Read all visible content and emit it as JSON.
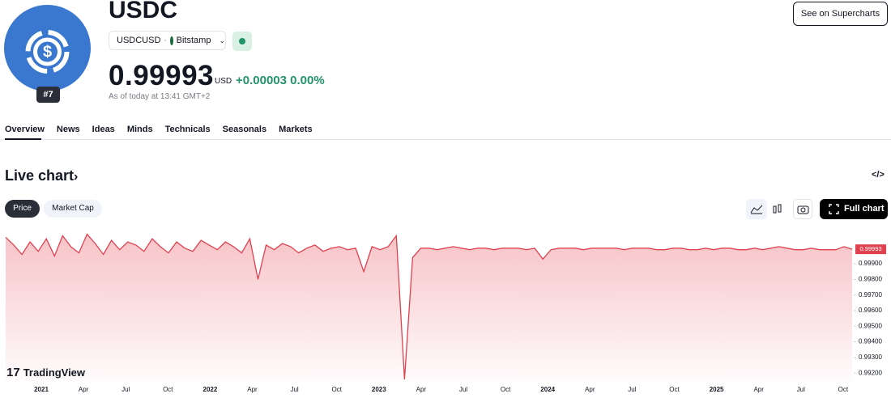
{
  "header": {
    "symbol_name": "USDC",
    "rank": "#7",
    "pair": "USDCUSD",
    "exchange": "Bitstamp",
    "price": "0.99993",
    "currency": "USD",
    "change": "+0.00003",
    "change_pct": "0.00%",
    "as_of": "As of today at 13:41 GMT+2",
    "button": "See on Supercharts"
  },
  "tabs": [
    "Overview",
    "News",
    "Ideas",
    "Minds",
    "Technicals",
    "Seasonals",
    "Markets"
  ],
  "section_title": "Live chart",
  "chart_buttons": [
    "Price",
    "Market Cap"
  ],
  "full_chart": "Full chart",
  "watermark": "TradingView",
  "chart": {
    "type": "line",
    "color": "#e0414f",
    "categories": [
      "2021",
      "Apr",
      "Jul",
      "Oct",
      "2022",
      "Apr",
      "Jul",
      "Oct",
      "2023",
      "Apr",
      "Jul",
      "Oct",
      "2024",
      "Apr",
      "Jul",
      "Oct",
      "2025",
      "Apr",
      "Jul",
      "Oct"
    ],
    "values": [
      1.0007,
      1.0002,
      0.9996,
      1.0004,
      0.9998,
      1.0006,
      0.9995,
      1.0008,
      1.0001,
      0.9997,
      1.0009,
      1.0003,
      0.9996,
      1.0005,
      0.9999,
      1.0004,
      1.0002,
      0.9998,
      1.0006,
      1.0001,
      0.9997,
      1.0004,
      1.0,
      0.9998,
      1.0005,
      1.0002,
      0.9999,
      1.0004,
      1.0001,
      0.9997,
      1.0006,
      0.998,
      1.0002,
      0.9999,
      1.0003,
      1.0001,
      0.9997,
      1.0,
      1.0002,
      0.9998,
      1.0,
      1.0001,
      0.9999,
      1.0,
      0.9985,
      1.0001,
      0.9999,
      1.0001,
      1.0008,
      0.9916,
      0.9994,
      1.0,
      1.0,
      0.9999,
      1.0,
      1.0001,
      1.0,
      0.9999,
      1.0,
      1.0,
      0.9999,
      1.0,
      1.0,
      1.0,
      0.9999,
      1.0,
      0.9993,
      0.9999,
      1.0,
      1.0,
      1.0,
      0.9999,
      1.0,
      1.0,
      1.0,
      1.0,
      0.9999,
      1.0,
      1.0,
      1.0,
      0.9999,
      0.9999,
      1.0,
      1.0,
      0.9999,
      0.9999,
      1.0,
      0.9999,
      1.0,
      1.0,
      0.9999,
      0.9999,
      1.0,
      0.9999,
      1.0,
      1.0001,
      1.0,
      0.9999,
      0.9999,
      1.0,
      0.9999,
      0.9999,
      0.9999,
      1.0001,
      0.99993
    ],
    "ylim": [
      0.9915,
      1.001
    ],
    "yticks": [
      {
        "value": 0.999,
        "label": "0.99900"
      },
      {
        "value": 0.998,
        "label": "0.99800"
      },
      {
        "value": 0.997,
        "label": "0.99700"
      },
      {
        "value": 0.996,
        "label": "0.99600"
      },
      {
        "value": 0.995,
        "label": "0.99500"
      },
      {
        "value": 0.994,
        "label": "0.99400"
      },
      {
        "value": 0.993,
        "label": "0.99300"
      },
      {
        "value": 0.992,
        "label": "0.99200"
      }
    ]
  }
}
